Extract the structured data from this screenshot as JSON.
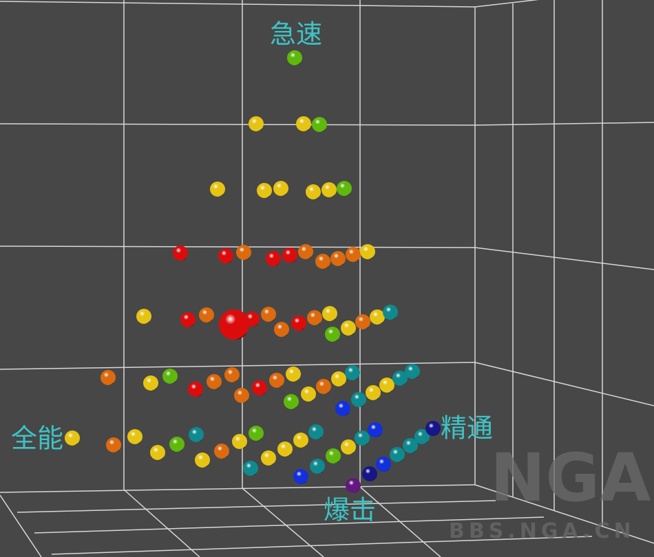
{
  "labels": {
    "top": "急速",
    "left": "全能",
    "right": "精通",
    "bottom": "爆击"
  },
  "watermark": {
    "logo": "NGA",
    "site": "BBS.NGA.CN"
  }
}
